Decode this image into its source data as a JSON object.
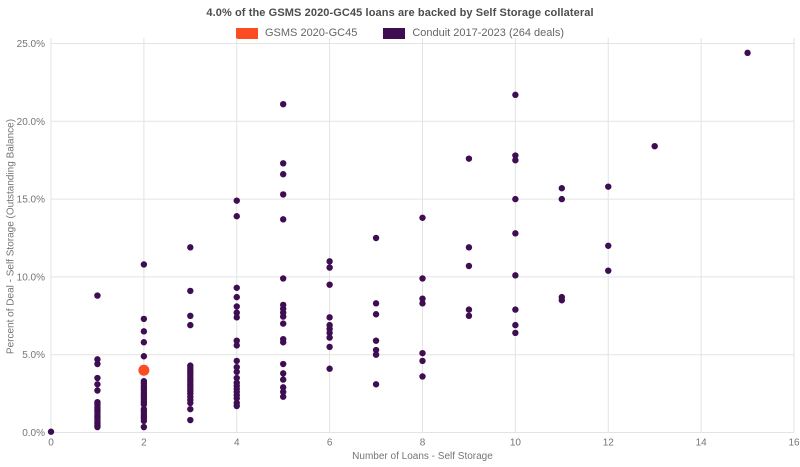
{
  "title": "4.0% of the GSMS 2020-GC45 loans are backed by Self Storage collateral",
  "legend": [
    {
      "label": "GSMS 2020-GC45",
      "color": "#fb4d21"
    },
    {
      "label": "Conduit 2017-2023 (264 deals)",
      "color": "#3e0d52"
    }
  ],
  "colors": {
    "gridline": "#e3e3e3",
    "title_text": "#4d4d4d",
    "axis_text": "#757575",
    "background": "#ffffff"
  },
  "chart_data": {
    "type": "scatter",
    "title": "4.0% of the GSMS 2020-GC45 loans are backed by Self Storage collateral",
    "xlabel": "Number of Loans - Self Storage",
    "ylabel": "Percent of Deal - Self Storage (Outstanding Balance)",
    "xlim": [
      0,
      16
    ],
    "ylim": [
      0,
      25
    ],
    "grid": true,
    "legend_position": "top-center",
    "x_ticks": [
      {
        "label": "0",
        "value": 0
      },
      {
        "label": "2",
        "value": 2
      },
      {
        "label": "4",
        "value": 4
      },
      {
        "label": "6",
        "value": 6
      },
      {
        "label": "8",
        "value": 8
      },
      {
        "label": "10",
        "value": 10
      },
      {
        "label": "12",
        "value": 12
      },
      {
        "label": "14",
        "value": 14
      },
      {
        "label": "16",
        "value": 16
      }
    ],
    "y_ticks": [
      {
        "label": "0.0%",
        "value": 0
      },
      {
        "label": "5.0%",
        "value": 5
      },
      {
        "label": "10.0%",
        "value": 10
      },
      {
        "label": "15.0%",
        "value": 15
      },
      {
        "label": "20.0%",
        "value": 20
      },
      {
        "label": "25.0%",
        "value": 25
      }
    ],
    "series": [
      {
        "name": "GSMS 2020-GC45",
        "color": "#fb4d21",
        "marker_radius": 5.5,
        "points": [
          [
            2,
            4.0
          ]
        ]
      },
      {
        "name": "Conduit 2017-2023 (264 deals)",
        "color": "#3e0d52",
        "marker_radius": 3.2,
        "points": [
          [
            0,
            0.05
          ],
          [
            1,
            8.8
          ],
          [
            1,
            4.7
          ],
          [
            1,
            4.4
          ],
          [
            1,
            3.5
          ],
          [
            1,
            3.1
          ],
          [
            1,
            2.7
          ],
          [
            1,
            1.95
          ],
          [
            1,
            1.8
          ],
          [
            1,
            1.65
          ],
          [
            1,
            1.5
          ],
          [
            1,
            1.35
          ],
          [
            1,
            1.2
          ],
          [
            1,
            1.05
          ],
          [
            1,
            0.9
          ],
          [
            1,
            0.75
          ],
          [
            1,
            0.6
          ],
          [
            1,
            0.45
          ],
          [
            1,
            0.35
          ],
          [
            2,
            10.8
          ],
          [
            2,
            7.3
          ],
          [
            2,
            6.5
          ],
          [
            2,
            5.8
          ],
          [
            2,
            4.9
          ],
          [
            2,
            3.3
          ],
          [
            2,
            3.15
          ],
          [
            2,
            3.0
          ],
          [
            2,
            2.85
          ],
          [
            2,
            2.7
          ],
          [
            2,
            2.55
          ],
          [
            2,
            2.4
          ],
          [
            2,
            2.25
          ],
          [
            2,
            2.1
          ],
          [
            2,
            1.95
          ],
          [
            2,
            1.8
          ],
          [
            2,
            1.5
          ],
          [
            2,
            1.35
          ],
          [
            2,
            1.2
          ],
          [
            2,
            1.05
          ],
          [
            2,
            0.9
          ],
          [
            2,
            0.75
          ],
          [
            2,
            0.35
          ],
          [
            3,
            11.9
          ],
          [
            3,
            9.1
          ],
          [
            3,
            7.5
          ],
          [
            3,
            6.9
          ],
          [
            3,
            4.3
          ],
          [
            3,
            4.15
          ],
          [
            3,
            4.0
          ],
          [
            3,
            3.85
          ],
          [
            3,
            3.7
          ],
          [
            3,
            3.55
          ],
          [
            3,
            3.4
          ],
          [
            3,
            3.25
          ],
          [
            3,
            3.1
          ],
          [
            3,
            2.95
          ],
          [
            3,
            2.8
          ],
          [
            3,
            2.65
          ],
          [
            3,
            2.5
          ],
          [
            3,
            2.3
          ],
          [
            3,
            2.1
          ],
          [
            3,
            1.9
          ],
          [
            3,
            1.5
          ],
          [
            3,
            0.8
          ],
          [
            4,
            14.9
          ],
          [
            4,
            13.9
          ],
          [
            4,
            9.3
          ],
          [
            4,
            8.7
          ],
          [
            4,
            8.1
          ],
          [
            4,
            7.7
          ],
          [
            4,
            7.4
          ],
          [
            4,
            5.9
          ],
          [
            4,
            5.6
          ],
          [
            4,
            4.6
          ],
          [
            4,
            4.2
          ],
          [
            4,
            3.9
          ],
          [
            4,
            3.5
          ],
          [
            4,
            3.2
          ],
          [
            4,
            3.0
          ],
          [
            4,
            2.8
          ],
          [
            4,
            2.6
          ],
          [
            4,
            2.4
          ],
          [
            4,
            2.2
          ],
          [
            4,
            1.9
          ],
          [
            4,
            1.7
          ],
          [
            5,
            21.1
          ],
          [
            5,
            17.3
          ],
          [
            5,
            16.6
          ],
          [
            5,
            15.3
          ],
          [
            5,
            13.7
          ],
          [
            5,
            9.9
          ],
          [
            5,
            8.2
          ],
          [
            5,
            7.95
          ],
          [
            5,
            7.7
          ],
          [
            5,
            7.45
          ],
          [
            5,
            7.0
          ],
          [
            5,
            6.0
          ],
          [
            5,
            5.8
          ],
          [
            5,
            4.4
          ],
          [
            5,
            3.8
          ],
          [
            5,
            3.4
          ],
          [
            5,
            2.9
          ],
          [
            5,
            2.6
          ],
          [
            5,
            2.3
          ],
          [
            6,
            11.0
          ],
          [
            6,
            10.6
          ],
          [
            6,
            9.5
          ],
          [
            6,
            7.4
          ],
          [
            6,
            6.9
          ],
          [
            6,
            6.65
          ],
          [
            6,
            6.4
          ],
          [
            6,
            6.1
          ],
          [
            6,
            5.5
          ],
          [
            6,
            4.1
          ],
          [
            7,
            12.5
          ],
          [
            7,
            8.3
          ],
          [
            7,
            7.6
          ],
          [
            7,
            5.9
          ],
          [
            7,
            5.3
          ],
          [
            7,
            5.0
          ],
          [
            7,
            3.1
          ],
          [
            8,
            13.8
          ],
          [
            8,
            9.9
          ],
          [
            8,
            8.6
          ],
          [
            8,
            8.3
          ],
          [
            8,
            5.1
          ],
          [
            8,
            4.6
          ],
          [
            8,
            3.6
          ],
          [
            9,
            17.6
          ],
          [
            9,
            11.9
          ],
          [
            9,
            10.7
          ],
          [
            9,
            7.9
          ],
          [
            9,
            7.5
          ],
          [
            10,
            21.7
          ],
          [
            10,
            17.8
          ],
          [
            10,
            17.5
          ],
          [
            10,
            15.0
          ],
          [
            10,
            12.8
          ],
          [
            10,
            10.1
          ],
          [
            10,
            7.9
          ],
          [
            10,
            6.9
          ],
          [
            10,
            6.4
          ],
          [
            11,
            15.7
          ],
          [
            11,
            15.0
          ],
          [
            11,
            8.7
          ],
          [
            11,
            8.5
          ],
          [
            12,
            15.8
          ],
          [
            12,
            12.0
          ],
          [
            12,
            10.4
          ],
          [
            13,
            18.4
          ],
          [
            15,
            24.4
          ]
        ]
      }
    ]
  }
}
